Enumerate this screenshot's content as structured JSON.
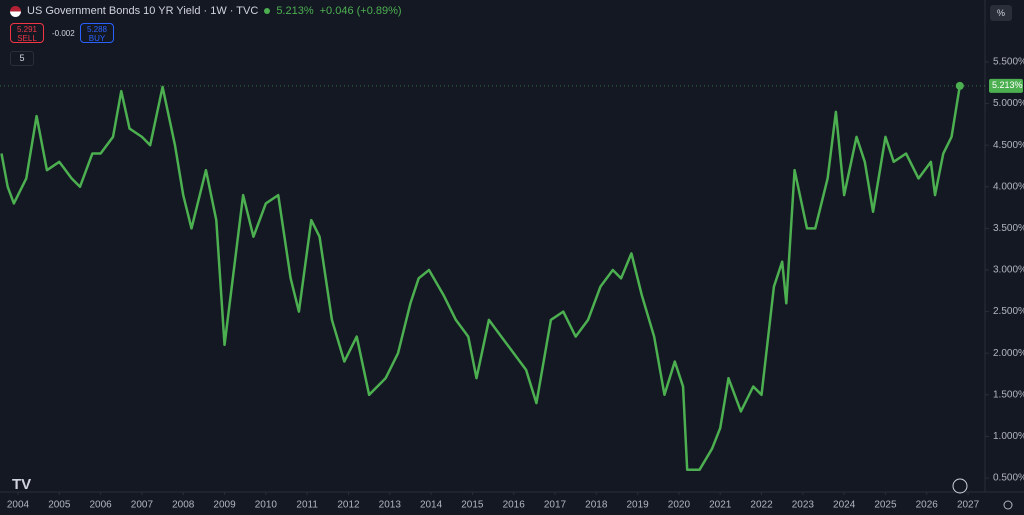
{
  "ui": {
    "symbol": "US Government Bonds 10 YR Yield · 1W · TVC",
    "last": "5.213%",
    "change": "+0.046 (+0.89%)",
    "sell_price": "5.291",
    "sell": "SELL",
    "spread": "-0.002",
    "buy_price": "5.288",
    "buy": "BUY",
    "indicators": "5",
    "scale_button": "%"
  },
  "chart_data": {
    "type": "line",
    "series": [
      {
        "name": "US Government Bonds 10 YR Yield",
        "color": "#4caf50",
        "x": [
          2003.6,
          2003.75,
          2003.9,
          2004.2,
          2004.45,
          2004.7,
          2005.0,
          2005.3,
          2005.5,
          2005.8,
          2006.0,
          2006.3,
          2006.5,
          2006.7,
          2007.0,
          2007.2,
          2007.5,
          2007.8,
          2008.0,
          2008.2,
          2008.4,
          2008.55,
          2008.8,
          2009.0,
          2009.2,
          2009.45,
          2009.7,
          2010.0,
          2010.3,
          2010.6,
          2010.8,
          2011.1,
          2011.3,
          2011.6,
          2011.9,
          2012.2,
          2012.5,
          2012.9,
          2013.2,
          2013.5,
          2013.7,
          2013.95,
          2014.3,
          2014.6,
          2014.9,
          2015.1,
          2015.4,
          2015.7,
          2016.0,
          2016.3,
          2016.55,
          2016.9,
          2017.2,
          2017.5,
          2017.8,
          2018.1,
          2018.4,
          2018.6,
          2018.85,
          2019.1,
          2019.4,
          2019.65,
          2019.9,
          2020.1,
          2020.2,
          2020.5,
          2020.8,
          2021.0,
          2021.2,
          2021.5,
          2021.8,
          2022.0,
          2022.3,
          2022.5,
          2022.6,
          2022.8,
          2023.1,
          2023.3,
          2023.6,
          2023.8,
          2024.0,
          2024.3,
          2024.5,
          2024.7,
          2025.0,
          2025.2,
          2025.5,
          2025.8,
          2026.1,
          2026.2,
          2026.4,
          2026.6,
          2026.8
        ],
        "values": [
          4.4,
          4.0,
          3.8,
          4.1,
          4.85,
          4.2,
          4.3,
          4.1,
          4.0,
          4.4,
          4.4,
          4.6,
          5.15,
          4.7,
          4.6,
          4.5,
          5.2,
          4.5,
          3.9,
          3.5,
          3.9,
          4.2,
          3.6,
          2.1,
          2.9,
          3.9,
          3.4,
          3.8,
          3.9,
          2.9,
          2.5,
          3.6,
          3.4,
          2.4,
          1.9,
          2.2,
          1.5,
          1.7,
          2.0,
          2.6,
          2.9,
          3.0,
          2.7,
          2.4,
          2.2,
          1.7,
          2.4,
          2.2,
          2.0,
          1.8,
          1.4,
          2.4,
          2.5,
          2.2,
          2.4,
          2.8,
          3.0,
          2.9,
          3.2,
          2.7,
          2.2,
          1.5,
          1.9,
          1.6,
          0.6,
          0.6,
          0.85,
          1.1,
          1.7,
          1.3,
          1.6,
          1.5,
          2.8,
          3.1,
          2.6,
          4.2,
          3.5,
          3.5,
          4.1,
          4.9,
          3.9,
          4.6,
          4.3,
          3.7,
          4.6,
          4.3,
          4.4,
          4.1,
          4.3,
          3.9,
          4.4,
          4.6,
          5.213
        ]
      }
    ],
    "last_price": {
      "value": 5.213,
      "label": "5.213%"
    },
    "xlim": [
      2003.564,
      2027.41
    ],
    "xticks": [
      2004,
      2005,
      2006,
      2007,
      2008,
      2009,
      2010,
      2011,
      2012,
      2013,
      2014,
      2015,
      2016,
      2017,
      2018,
      2019,
      2020,
      2021,
      2022,
      2023,
      2024,
      2025,
      2026,
      2027
    ],
    "ylim": [
      0.332,
      6.245
    ],
    "yticks": [
      {
        "value": 0.5,
        "label": "0.500%"
      },
      {
        "value": 1.0,
        "label": "1.000%"
      },
      {
        "value": 1.5,
        "label": "1.500%"
      },
      {
        "value": 2.0,
        "label": "2.000%"
      },
      {
        "value": 2.5,
        "label": "2.500%"
      },
      {
        "value": 3.0,
        "label": "3.000%"
      },
      {
        "value": 3.5,
        "label": "3.500%"
      },
      {
        "value": 4.0,
        "label": "4.000%"
      },
      {
        "value": 4.5,
        "label": "4.500%"
      },
      {
        "value": 5.0,
        "label": "5.000%"
      },
      {
        "value": 5.5,
        "label": "5.500%"
      }
    ],
    "grid": false
  }
}
